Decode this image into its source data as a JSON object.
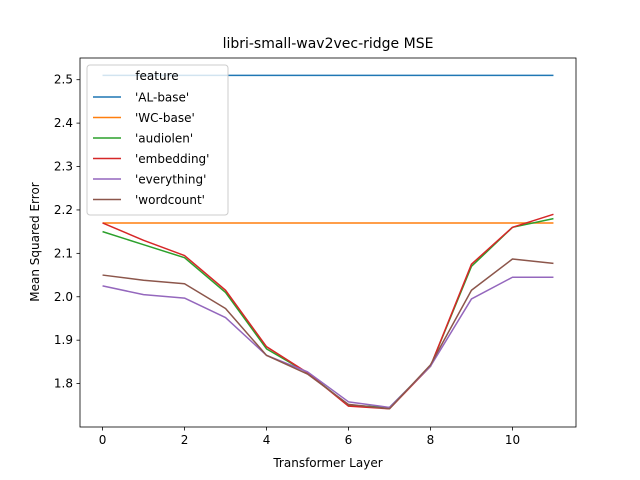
{
  "chart_data": {
    "type": "line",
    "title": "libri-small-wav2vec-ridge MSE",
    "xlabel": "Transformer Layer",
    "ylabel": "Mean Squared Error",
    "xlim": [
      -0.55,
      11.55
    ],
    "ylim": [
      1.7,
      2.55
    ],
    "xticks": [
      0,
      2,
      4,
      6,
      8,
      10
    ],
    "yticks": [
      1.8,
      1.9,
      2.0,
      2.1,
      2.2,
      2.3,
      2.4,
      2.5
    ],
    "legend": {
      "title": "feature",
      "placement": "upper-left"
    },
    "x": [
      0,
      1,
      2,
      3,
      4,
      5,
      6,
      7,
      8,
      9,
      10,
      11
    ],
    "series": [
      {
        "name": "'AL-base'",
        "color": "#1f77b4",
        "values": [
          2.51,
          2.51,
          2.51,
          2.51,
          2.51,
          2.51,
          2.51,
          2.51,
          2.51,
          2.51,
          2.51,
          2.51
        ]
      },
      {
        "name": "'WC-base'",
        "color": "#ff7f0e",
        "values": [
          2.17,
          2.17,
          2.17,
          2.17,
          2.17,
          2.17,
          2.17,
          2.17,
          2.17,
          2.17,
          2.17,
          2.17
        ]
      },
      {
        "name": "'audiolen'",
        "color": "#2ca02c",
        "values": [
          2.15,
          2.12,
          2.09,
          2.01,
          1.88,
          1.825,
          1.75,
          1.745,
          1.84,
          2.07,
          2.16,
          2.18
        ]
      },
      {
        "name": "'embedding'",
        "color": "#d62728",
        "values": [
          2.17,
          2.13,
          2.095,
          2.015,
          1.885,
          1.825,
          1.748,
          1.742,
          1.84,
          2.075,
          2.16,
          2.19
        ]
      },
      {
        "name": "'everything'",
        "color": "#9467bd",
        "values": [
          2.025,
          2.005,
          1.997,
          1.952,
          1.865,
          1.827,
          1.758,
          1.745,
          1.84,
          1.995,
          2.045,
          2.045
        ]
      },
      {
        "name": "'wordcount'",
        "color": "#8c564b",
        "values": [
          2.05,
          2.038,
          2.03,
          1.973,
          1.865,
          1.822,
          1.752,
          1.742,
          1.843,
          2.015,
          2.087,
          2.077
        ]
      }
    ]
  }
}
